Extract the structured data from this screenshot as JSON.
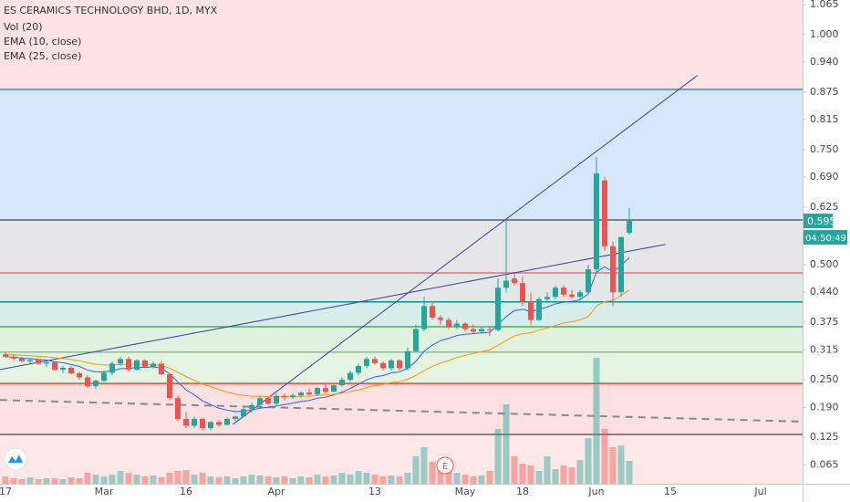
{
  "chart_data": {
    "type": "candlestick",
    "title": "ES CERAMICS TECHNOLOGY BHD, 1D, MYX",
    "categories": [
      "17",
      null,
      null,
      null,
      null,
      null,
      null,
      null,
      null,
      null,
      null,
      null,
      "Mar",
      null,
      null,
      null,
      null,
      null,
      null,
      null,
      null,
      null,
      "16",
      null,
      null,
      null,
      null,
      null,
      null,
      null,
      null,
      null,
      null,
      "Apr",
      null,
      null,
      null,
      null,
      null,
      null,
      null,
      null,
      null,
      null,
      null,
      "13",
      null,
      null,
      null,
      null,
      null,
      null,
      null,
      null,
      null,
      null,
      "May",
      null,
      null,
      null,
      null,
      null,
      null,
      "18",
      null,
      null,
      null,
      null,
      null,
      null,
      null,
      null,
      "Jun",
      null,
      null,
      null,
      null,
      null,
      null,
      null,
      null,
      "15",
      null,
      null,
      null,
      null,
      null,
      null,
      null,
      null,
      null,
      null,
      "Jul",
      null,
      null,
      null,
      null
    ],
    "open": [
      0.305,
      0.3,
      0.296,
      0.29,
      0.293,
      0.285,
      0.288,
      0.272,
      0.276,
      0.264,
      0.255,
      0.236,
      0.248,
      0.265,
      0.285,
      0.295,
      0.272,
      0.292,
      0.278,
      0.285,
      0.262,
      0.21,
      0.165,
      0.15,
      0.165,
      0.145,
      0.158,
      0.152,
      0.165,
      0.17,
      0.186,
      0.195,
      0.21,
      0.198,
      0.215,
      0.212,
      0.216,
      0.222,
      0.218,
      0.232,
      0.224,
      0.238,
      0.25,
      0.265,
      0.28,
      0.295,
      0.286,
      0.275,
      0.292,
      0.275,
      0.312,
      0.36,
      0.41,
      0.385,
      0.38,
      0.365,
      0.372,
      0.36,
      0.355,
      0.36,
      0.358,
      0.45,
      0.47,
      0.46,
      0.42,
      0.38,
      0.425,
      0.43,
      0.45,
      0.435,
      0.43,
      0.44,
      0.49,
      0.683,
      0.54,
      0.44,
      0.569,
      null,
      null,
      null,
      null,
      null,
      null,
      null,
      null,
      null,
      null,
      null,
      null,
      null,
      null,
      null,
      null,
      null,
      null,
      null,
      null
    ],
    "high": [
      0.31,
      0.305,
      0.3,
      0.298,
      0.296,
      0.29,
      0.29,
      0.28,
      0.28,
      0.268,
      0.26,
      0.25,
      0.27,
      0.29,
      0.3,
      0.3,
      0.295,
      0.295,
      0.29,
      0.29,
      0.265,
      0.215,
      0.18,
      0.17,
      0.168,
      0.16,
      0.162,
      0.168,
      0.172,
      0.19,
      0.2,
      0.215,
      0.212,
      0.22,
      0.22,
      0.22,
      0.225,
      0.23,
      0.235,
      0.24,
      0.24,
      0.255,
      0.27,
      0.285,
      0.3,
      0.3,
      0.29,
      0.295,
      0.295,
      0.32,
      0.37,
      0.43,
      0.42,
      0.39,
      0.385,
      0.38,
      0.375,
      0.37,
      0.365,
      0.365,
      0.47,
      0.595,
      0.48,
      0.475,
      0.44,
      0.43,
      0.44,
      0.455,
      0.455,
      0.445,
      0.445,
      0.5,
      0.734,
      0.69,
      0.55,
      0.56,
      0.623,
      null,
      null,
      null,
      null,
      null,
      null,
      null,
      null,
      null,
      null,
      null,
      null,
      null,
      null,
      null,
      null,
      null,
      null,
      null,
      null
    ],
    "low": [
      0.298,
      0.292,
      0.288,
      0.285,
      0.282,
      0.278,
      0.27,
      0.265,
      0.262,
      0.25,
      0.232,
      0.23,
      0.245,
      0.26,
      0.28,
      0.268,
      0.27,
      0.275,
      0.275,
      0.26,
      0.205,
      0.16,
      0.145,
      0.145,
      0.14,
      0.14,
      0.148,
      0.15,
      0.16,
      0.168,
      0.178,
      0.19,
      0.195,
      0.195,
      0.205,
      0.208,
      0.21,
      0.215,
      0.215,
      0.22,
      0.222,
      0.235,
      0.245,
      0.26,
      0.275,
      0.282,
      0.27,
      0.27,
      0.27,
      0.27,
      0.31,
      0.355,
      0.38,
      0.37,
      0.36,
      0.36,
      0.355,
      0.35,
      0.35,
      0.345,
      0.355,
      0.44,
      0.455,
      0.41,
      0.37,
      0.378,
      0.42,
      0.425,
      0.43,
      0.425,
      0.425,
      0.435,
      0.485,
      0.53,
      0.41,
      0.43,
      0.565,
      null,
      null,
      null,
      null,
      null,
      null,
      null,
      null,
      null,
      null,
      null,
      null,
      null,
      null,
      null,
      null,
      null,
      null,
      null,
      null
    ],
    "close": [
      0.3,
      0.296,
      0.29,
      0.293,
      0.285,
      0.288,
      0.272,
      0.276,
      0.264,
      0.255,
      0.236,
      0.248,
      0.265,
      0.285,
      0.295,
      0.272,
      0.292,
      0.278,
      0.285,
      0.262,
      0.21,
      0.165,
      0.15,
      0.165,
      0.145,
      0.158,
      0.152,
      0.165,
      0.17,
      0.186,
      0.195,
      0.21,
      0.198,
      0.215,
      0.212,
      0.216,
      0.222,
      0.218,
      0.232,
      0.224,
      0.238,
      0.25,
      0.265,
      0.28,
      0.295,
      0.286,
      0.275,
      0.292,
      0.275,
      0.312,
      0.36,
      0.41,
      0.385,
      0.38,
      0.365,
      0.372,
      0.36,
      0.355,
      0.36,
      0.358,
      0.45,
      0.465,
      0.46,
      0.42,
      0.38,
      0.425,
      0.43,
      0.45,
      0.435,
      0.43,
      0.44,
      0.49,
      0.698,
      0.54,
      0.44,
      0.56,
      0.595,
      null,
      null,
      null,
      null,
      null,
      null,
      null,
      null,
      null,
      null,
      null,
      null,
      null,
      null,
      null,
      null,
      null,
      null,
      null,
      null
    ],
    "up_color": "#26a69a",
    "down_color": "#ef5350",
    "volume": {
      "name": "Vol (20)",
      "values": [
        1.6,
        1.2,
        1,
        1.4,
        1,
        1.2,
        1.2,
        1,
        1.4,
        1.2,
        2.4,
        2,
        1.6,
        2,
        2.8,
        2.4,
        2,
        1.6,
        1.8,
        1.4,
        2.4,
        2.8,
        3,
        2,
        2.4,
        1.6,
        1.4,
        1.6,
        1.2,
        1.6,
        2,
        1.8,
        1.6,
        1.4,
        1.6,
        1.2,
        1.6,
        1.4,
        2,
        1.6,
        1.8,
        2.4,
        2,
        2.8,
        2.4,
        2,
        1.6,
        1.8,
        1.6,
        2.4,
        6,
        8,
        4.8,
        3.6,
        3.2,
        2.4,
        2,
        1.6,
        1.8,
        2.8,
        12,
        17.4,
        6,
        4.4,
        4,
        2.8,
        6,
        3.2,
        4,
        3.6,
        5.2,
        10,
        27.6,
        12,
        8,
        8.4,
        5,
        null,
        null,
        null,
        null,
        null,
        null,
        null,
        null,
        null,
        null,
        null,
        null,
        null,
        null,
        null,
        null,
        null,
        null,
        null,
        null
      ]
    },
    "series": [
      {
        "name": "EMA (10, close)",
        "color": "#2962ff",
        "values": [
          0.3,
          0.299,
          0.297,
          0.296,
          0.294,
          0.293,
          0.289,
          0.287,
          0.283,
          0.279,
          0.271,
          0.267,
          0.267,
          0.27,
          0.274,
          0.274,
          0.277,
          0.277,
          0.278,
          0.275,
          0.263,
          0.245,
          0.228,
          0.217,
          0.204,
          0.196,
          0.188,
          0.184,
          0.181,
          0.182,
          0.184,
          0.188,
          0.19,
          0.193,
          0.196,
          0.199,
          0.203,
          0.205,
          0.21,
          0.212,
          0.217,
          0.223,
          0.231,
          0.24,
          0.25,
          0.256,
          0.259,
          0.265,
          0.267,
          0.275,
          0.29,
          0.312,
          0.325,
          0.335,
          0.34,
          0.346,
          0.349,
          0.35,
          0.352,
          0.353,
          0.37,
          0.387,
          0.4,
          0.403,
          0.398,
          0.403,
          0.408,
          0.415,
          0.418,
          0.42,
          0.424,
          0.436,
          0.484,
          0.495,
          0.485,
          0.498,
          0.515,
          null,
          null,
          null,
          null,
          null,
          null,
          null,
          null,
          null,
          null,
          null,
          null,
          null,
          null,
          null,
          null,
          null,
          null,
          null,
          null
        ]
      },
      {
        "name": "EMA (25, close)",
        "color": "#ff9800",
        "values": [
          0.305,
          0.304,
          0.303,
          0.302,
          0.301,
          0.3,
          0.298,
          0.296,
          0.294,
          0.291,
          0.287,
          0.284,
          0.282,
          0.282,
          0.283,
          0.283,
          0.284,
          0.283,
          0.283,
          0.281,
          0.275,
          0.266,
          0.257,
          0.249,
          0.241,
          0.235,
          0.229,
          0.223,
          0.219,
          0.216,
          0.214,
          0.214,
          0.213,
          0.213,
          0.213,
          0.213,
          0.214,
          0.214,
          0.216,
          0.217,
          0.218,
          0.221,
          0.224,
          0.228,
          0.233,
          0.237,
          0.24,
          0.244,
          0.246,
          0.251,
          0.259,
          0.27,
          0.279,
          0.286,
          0.292,
          0.298,
          0.303,
          0.307,
          0.311,
          0.315,
          0.325,
          0.335,
          0.345,
          0.35,
          0.352,
          0.358,
          0.362,
          0.368,
          0.373,
          0.376,
          0.38,
          0.387,
          0.41,
          0.42,
          0.422,
          0.433,
          0.445,
          null,
          null,
          null,
          null,
          null,
          null,
          null,
          null,
          null,
          null,
          null,
          null,
          null,
          null,
          null,
          null,
          null,
          null,
          null,
          null
        ]
      }
    ],
    "levels": [
      {
        "value": 0.881,
        "color": "#2196f3",
        "fill": "#d4e7fb"
      },
      {
        "value": 0.597,
        "color": "#5d606b",
        "fill": "#e6e6e8"
      },
      {
        "value": 0.482,
        "color": "#e57373",
        "fill": "#e4e7e8"
      },
      {
        "value": 0.419,
        "color": "#009688",
        "fill": "#d6ede9"
      },
      {
        "value": 0.365,
        "color": "#4caf50",
        "fill": "#e0f1e0"
      },
      {
        "value": 0.31,
        "color": "#81c784",
        "fill": "#e5f3e3"
      },
      {
        "value": 0.242,
        "color": "#f44336",
        "fill": "#fbe1e1"
      },
      {
        "value": 0.131,
        "color": "#5d606b",
        "fill": "#fde7e7"
      }
    ],
    "background": "#fde3e3",
    "trendlines": [
      {
        "color": "#3f3fb0",
        "dashed": false,
        "points": [
          [
            27.7,
            0.153
          ],
          [
            84.3,
            0.911
          ]
        ]
      },
      {
        "color": "#3f3fb0",
        "dashed": false,
        "points": [
          [
            -0.67,
            0.272
          ],
          [
            80.4,
            0.544
          ]
        ]
      },
      {
        "color": "#8a8a8a",
        "dashed": true,
        "points": [
          [
            -0.67,
            0.206
          ],
          [
            97.1,
            0.159
          ]
        ]
      }
    ],
    "earnings": {
      "label": "E"
    },
    "countdown": "04:50:49",
    "ylim": [
      0.024,
      1.075
    ],
    "yticks": [
      1.065,
      {
        "value": 1,
        "label": "1.000"
      },
      {
        "value": 0.94,
        "label": "0.940"
      },
      0.875,
      0.815,
      {
        "value": 0.75,
        "label": "0.750"
      },
      {
        "value": 0.69,
        "label": "0.690"
      },
      0.625,
      {
        "value": 0.5,
        "label": "0.500"
      },
      {
        "value": 0.44,
        "label": "0.440"
      },
      0.375,
      0.315,
      {
        "value": 0.25,
        "label": "0.250"
      },
      {
        "value": 0.19,
        "label": "0.190"
      },
      0.125,
      0.065
    ]
  }
}
